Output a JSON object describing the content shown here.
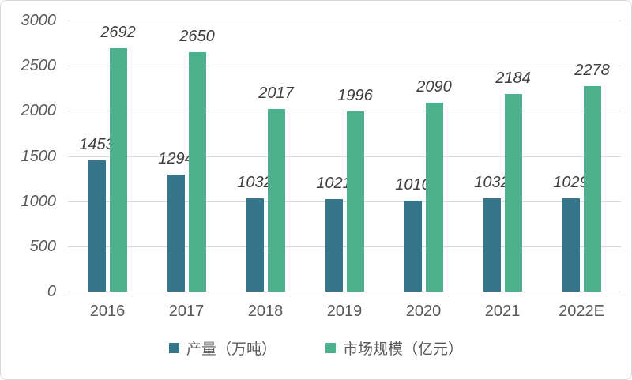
{
  "chart_data": {
    "type": "bar",
    "categories": [
      "2016",
      "2017",
      "2018",
      "2019",
      "2020",
      "2021",
      "2022E"
    ],
    "series": [
      {
        "name": "产量（万吨）",
        "color": "#35768A",
        "values": [
          1453,
          1294,
          1032,
          1021,
          1010,
          1032,
          1029
        ]
      },
      {
        "name": "市场规模（亿元）",
        "color": "#4CB18D",
        "values": [
          2692,
          2650,
          2017,
          1996,
          2090,
          2184,
          2278
        ]
      }
    ],
    "title": "",
    "xlabel": "",
    "ylabel": "",
    "ylim": [
      0,
      3000
    ],
    "yticks": [
      0,
      500,
      1000,
      1500,
      2000,
      2500,
      3000
    ],
    "grid": true,
    "legend_position": "bottom",
    "value_labels_shown": true,
    "colors": {
      "gridline": "#D9D9D9",
      "axis_line": "#C3C3C3",
      "tick_text": "#595959",
      "value_text": "#3F3F3F",
      "frame_border": "#D9D9D9",
      "background": "#FFFFFF"
    }
  }
}
